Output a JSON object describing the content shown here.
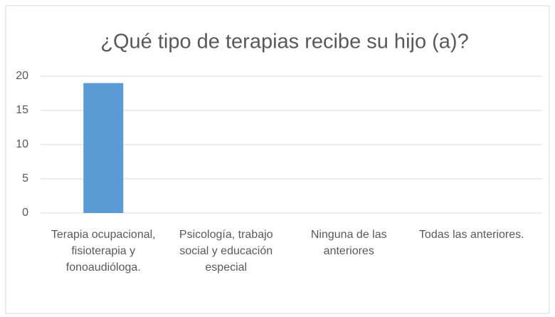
{
  "chart_data": {
    "type": "bar",
    "title": "¿Qué tipo de terapias recibe su hijo (a)?",
    "categories": [
      "Terapia ocupacional, fisioterapia y fonoaudióloga.",
      "Psicología, trabajo social y educación especial",
      "Ninguna de las anteriores",
      "Todas las anteriores."
    ],
    "values": [
      19,
      0,
      0,
      0
    ],
    "color": "#5b9bd5",
    "ylim": [
      0,
      20
    ],
    "yticks": [
      0,
      5,
      10,
      15,
      20
    ],
    "grid": true
  }
}
